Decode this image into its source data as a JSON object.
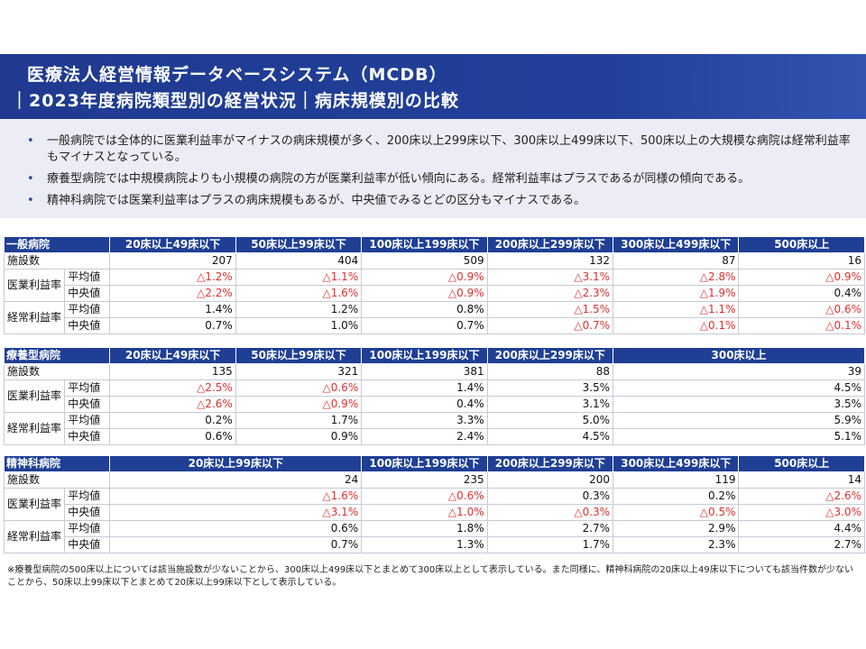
{
  "header": {
    "title_line1": "医療法人経営情報データベースシステム（MCDB）",
    "title_line2": "｜2023年度病院類型別の経営状況｜病床規模別の比較"
  },
  "summary": {
    "bullets": [
      "一般病院では全体的に医業利益率がマイナスの病床規模が多く、200床以上299床以下、300床以上499床以下、500床以上の大規模な病院は経常利益率もマイナスとなっている。",
      "療養型病院では中規模病院よりも小規模の病院の方が医業利益率が低い傾向にある。経常利益率はプラスであるが同様の傾向である。",
      "精神科病院では医業利益率はプラスの病床規模もあるが、中央値でみるとどの区分もマイナスである。"
    ]
  },
  "tables": [
    {
      "title": "一般病院",
      "columns": [
        {
          "label": "20床以上49床以下",
          "span": 1
        },
        {
          "label": "50床以上99床以下",
          "span": 1
        },
        {
          "label": "100床以上199床以下",
          "span": 1
        },
        {
          "label": "200床以上299床以下",
          "span": 1
        },
        {
          "label": "300床以上499床以下",
          "span": 1
        },
        {
          "label": "500床以上",
          "span": 1
        }
      ],
      "facilities_label": "施設数",
      "facilities": [
        "207",
        "404",
        "509",
        "132",
        "87",
        "16"
      ],
      "groups": [
        {
          "label": "医業利益率",
          "rows": [
            {
              "label": "平均値",
              "values": [
                "△1.2%",
                "△1.1%",
                "△0.9%",
                "△3.1%",
                "△2.8%",
                "△0.9%"
              ]
            },
            {
              "label": "中央値",
              "values": [
                "△2.2%",
                "△1.6%",
                "△0.9%",
                "△2.3%",
                "△1.9%",
                "0.4%"
              ]
            }
          ]
        },
        {
          "label": "経常利益率",
          "rows": [
            {
              "label": "平均値",
              "values": [
                "1.4%",
                "1.2%",
                "0.8%",
                "△1.5%",
                "△1.1%",
                "△0.6%"
              ]
            },
            {
              "label": "中央値",
              "values": [
                "0.7%",
                "1.0%",
                "0.7%",
                "△0.7%",
                "△0.1%",
                "△0.1%"
              ]
            }
          ]
        }
      ]
    },
    {
      "title": "療養型病院",
      "columns": [
        {
          "label": "20床以上49床以下",
          "span": 1
        },
        {
          "label": "50床以上99床以下",
          "span": 1
        },
        {
          "label": "100床以上199床以下",
          "span": 1
        },
        {
          "label": "200床以上299床以下",
          "span": 1
        },
        {
          "label": "300床以上",
          "span": 2
        }
      ],
      "facilities_label": "施設数",
      "facilities": [
        "135",
        "321",
        "381",
        "88",
        "39"
      ],
      "groups": [
        {
          "label": "医業利益率",
          "rows": [
            {
              "label": "平均値",
              "values": [
                "△2.5%",
                "△0.6%",
                "1.4%",
                "3.5%",
                "4.5%"
              ]
            },
            {
              "label": "中央値",
              "values": [
                "△2.6%",
                "△0.9%",
                "0.4%",
                "3.1%",
                "3.5%"
              ]
            }
          ]
        },
        {
          "label": "経常利益率",
          "rows": [
            {
              "label": "平均値",
              "values": [
                "0.2%",
                "1.7%",
                "3.3%",
                "5.0%",
                "5.9%"
              ]
            },
            {
              "label": "中央値",
              "values": [
                "0.6%",
                "0.9%",
                "2.4%",
                "4.5%",
                "5.1%"
              ]
            }
          ]
        }
      ]
    },
    {
      "title": "精神科病院",
      "columns": [
        {
          "label": "20床以上99床以下",
          "span": 2
        },
        {
          "label": "100床以上199床以下",
          "span": 1
        },
        {
          "label": "200床以上299床以下",
          "span": 1
        },
        {
          "label": "300床以上499床以下",
          "span": 1
        },
        {
          "label": "500床以上",
          "span": 1
        }
      ],
      "facilities_label": "施設数",
      "facilities": [
        "24",
        "235",
        "200",
        "119",
        "14"
      ],
      "groups": [
        {
          "label": "医業利益率",
          "rows": [
            {
              "label": "平均値",
              "values": [
                "△1.6%",
                "△0.6%",
                "0.3%",
                "0.2%",
                "△2.6%"
              ]
            },
            {
              "label": "中央値",
              "values": [
                "△3.1%",
                "△1.0%",
                "△0.3%",
                "△0.5%",
                "△3.0%"
              ]
            }
          ]
        },
        {
          "label": "経常利益率",
          "rows": [
            {
              "label": "平均値",
              "values": [
                "0.6%",
                "1.8%",
                "2.7%",
                "2.9%",
                "4.4%"
              ]
            },
            {
              "label": "中央値",
              "values": [
                "0.7%",
                "1.3%",
                "1.7%",
                "2.3%",
                "2.7%"
              ]
            }
          ]
        }
      ]
    }
  ],
  "note": "※療養型病院の500床以上については該当施設数が少ないことから、300床以上499床以下とまとめて300床以上として表示している。また同様に、精神科病院の20床以上49床以下についても該当件数が少ないことから、50床以上99床以下とまとめて20床以上99床以下として表示している。",
  "colors": {
    "header_bg": "#1f3f95",
    "summary_bg": "#ecedf4",
    "negative_text": "#e03030"
  }
}
